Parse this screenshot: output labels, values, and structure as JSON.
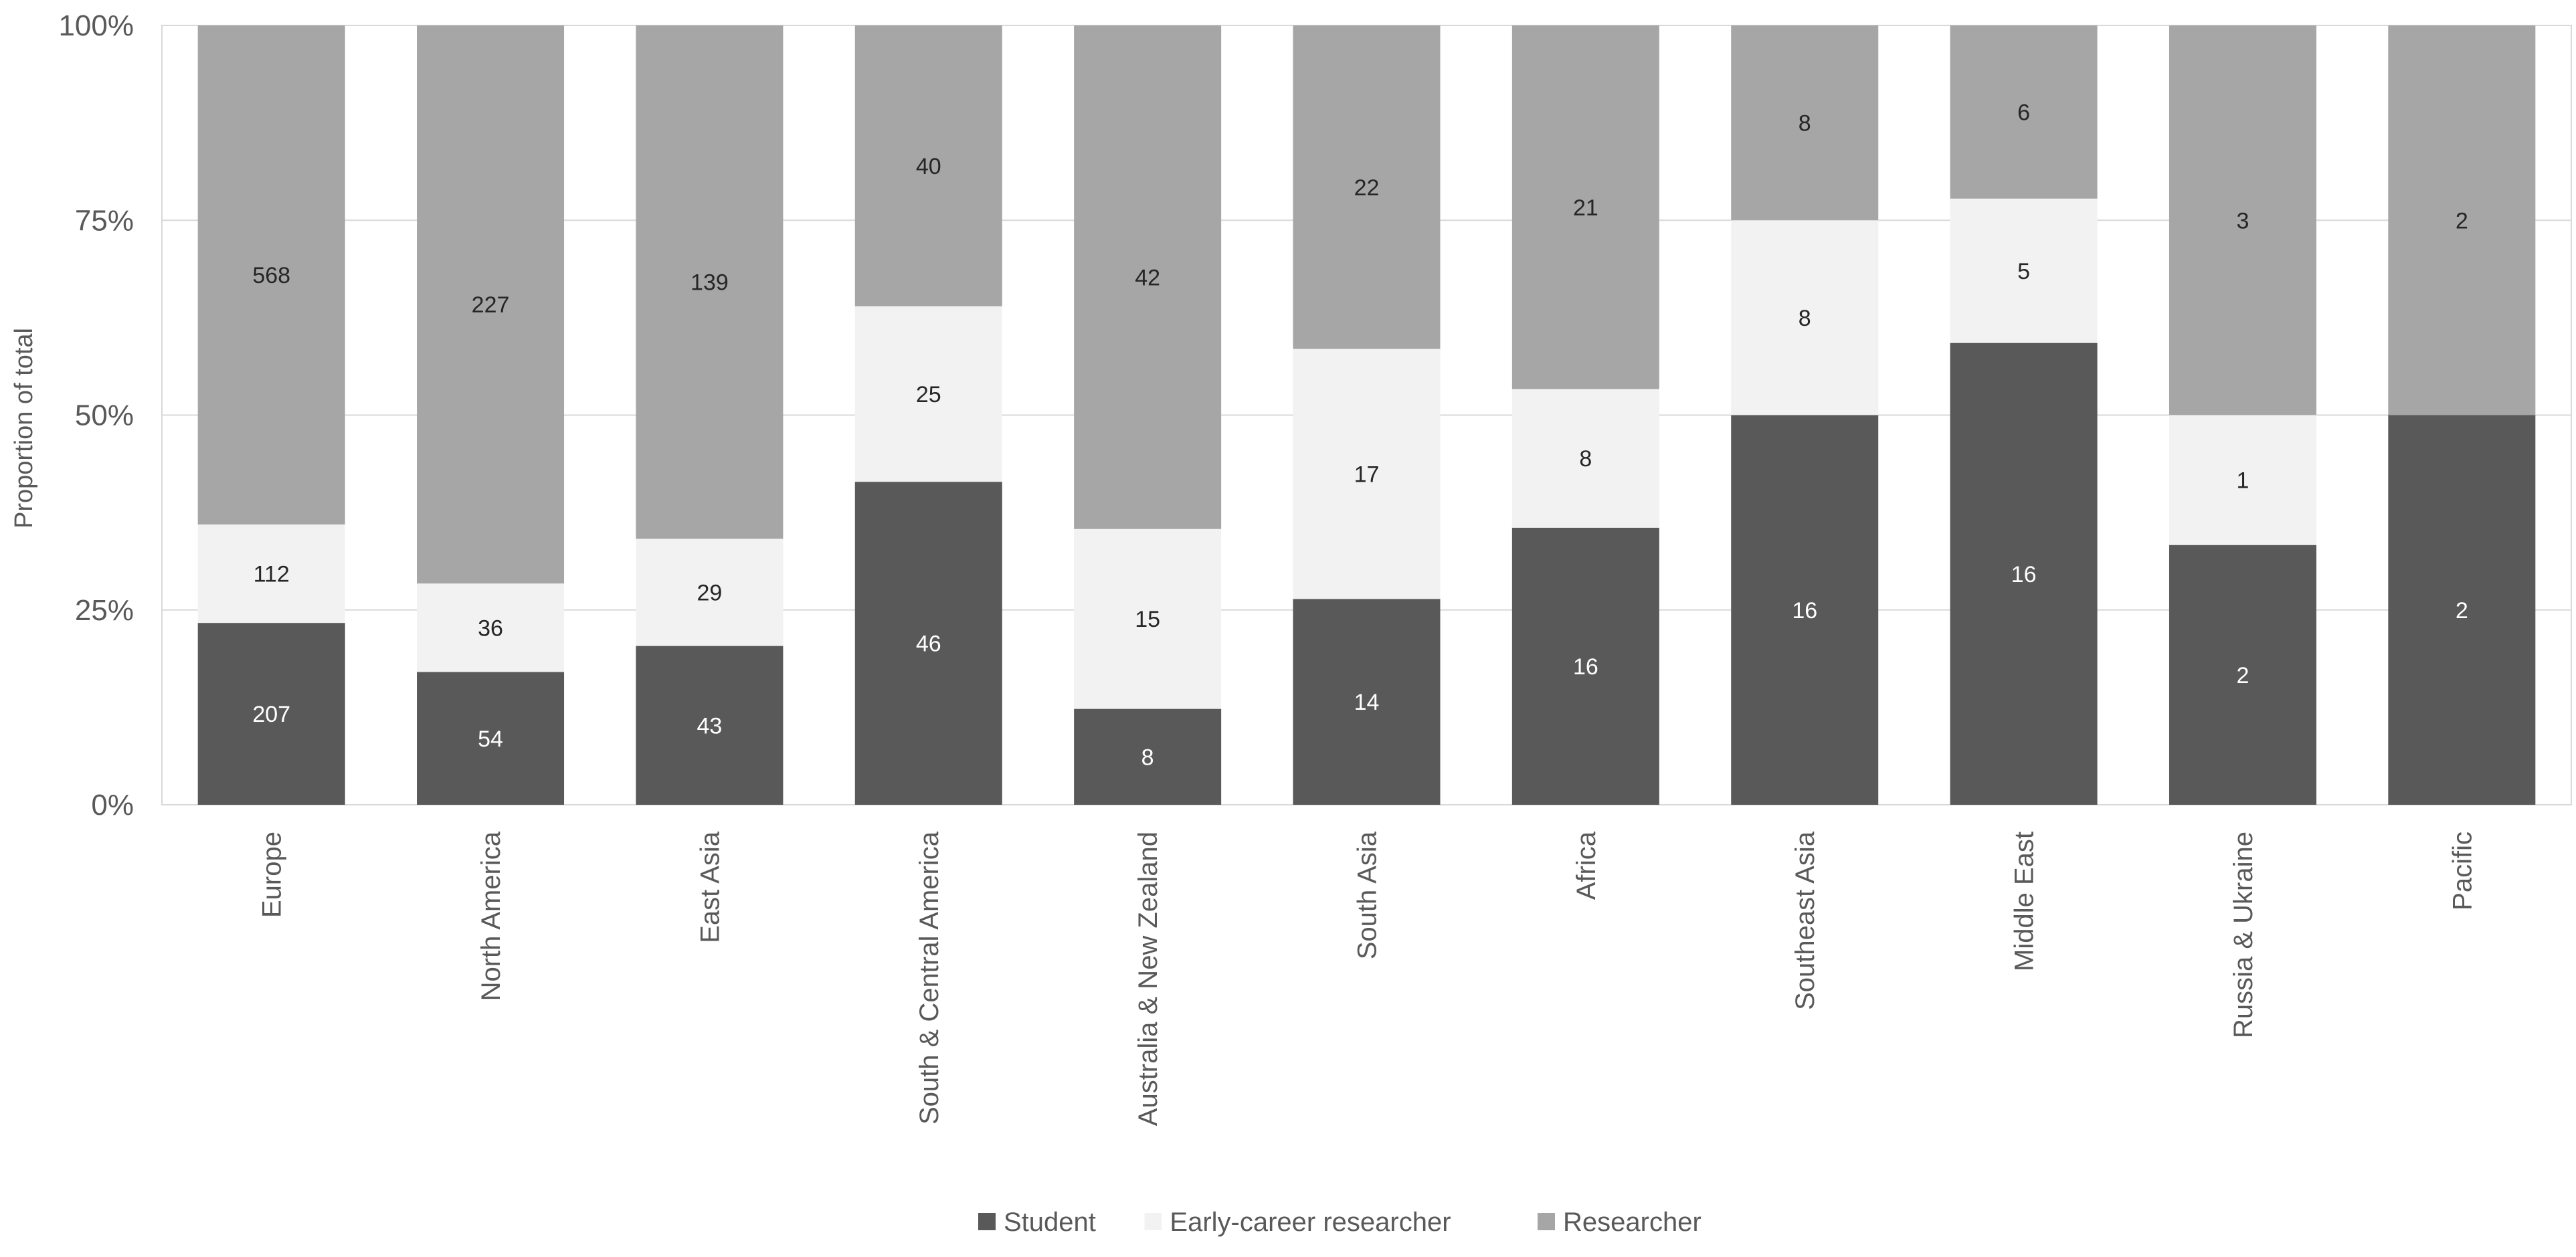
{
  "chart_data": {
    "type": "bar",
    "stacked": true,
    "normalized": true,
    "title": "",
    "xlabel": "",
    "ylabel": "Proportion  of total",
    "ylim": [
      0,
      100
    ],
    "ytick_labels": [
      "0%",
      "25%",
      "50%",
      "75%",
      "100%"
    ],
    "ytick_values": [
      0,
      25,
      50,
      75,
      100
    ],
    "grid": "horizontal",
    "legend_position": "bottom",
    "categories": [
      "Europe",
      "North America",
      "East Asia",
      "South & Central America",
      "Australia & New Zealand",
      "South Asia",
      "Africa",
      "Southeast Asia",
      "Middle East",
      "Russia & Ukraine",
      "Pacific"
    ],
    "series": [
      {
        "name": "Student",
        "color": "#595959",
        "label_color": "#ffffff",
        "values": [
          207,
          54,
          43,
          46,
          8,
          14,
          16,
          16,
          16,
          2,
          2
        ]
      },
      {
        "name": "Early-career researcher",
        "color": "#f2f2f2",
        "label_color": "#262626",
        "values": [
          112,
          36,
          29,
          25,
          15,
          17,
          8,
          8,
          5,
          1,
          0
        ]
      },
      {
        "name": "Researcher",
        "color": "#a6a6a6",
        "label_color": "#262626",
        "values": [
          568,
          227,
          139,
          40,
          42,
          22,
          21,
          8,
          6,
          3,
          2
        ]
      }
    ]
  }
}
